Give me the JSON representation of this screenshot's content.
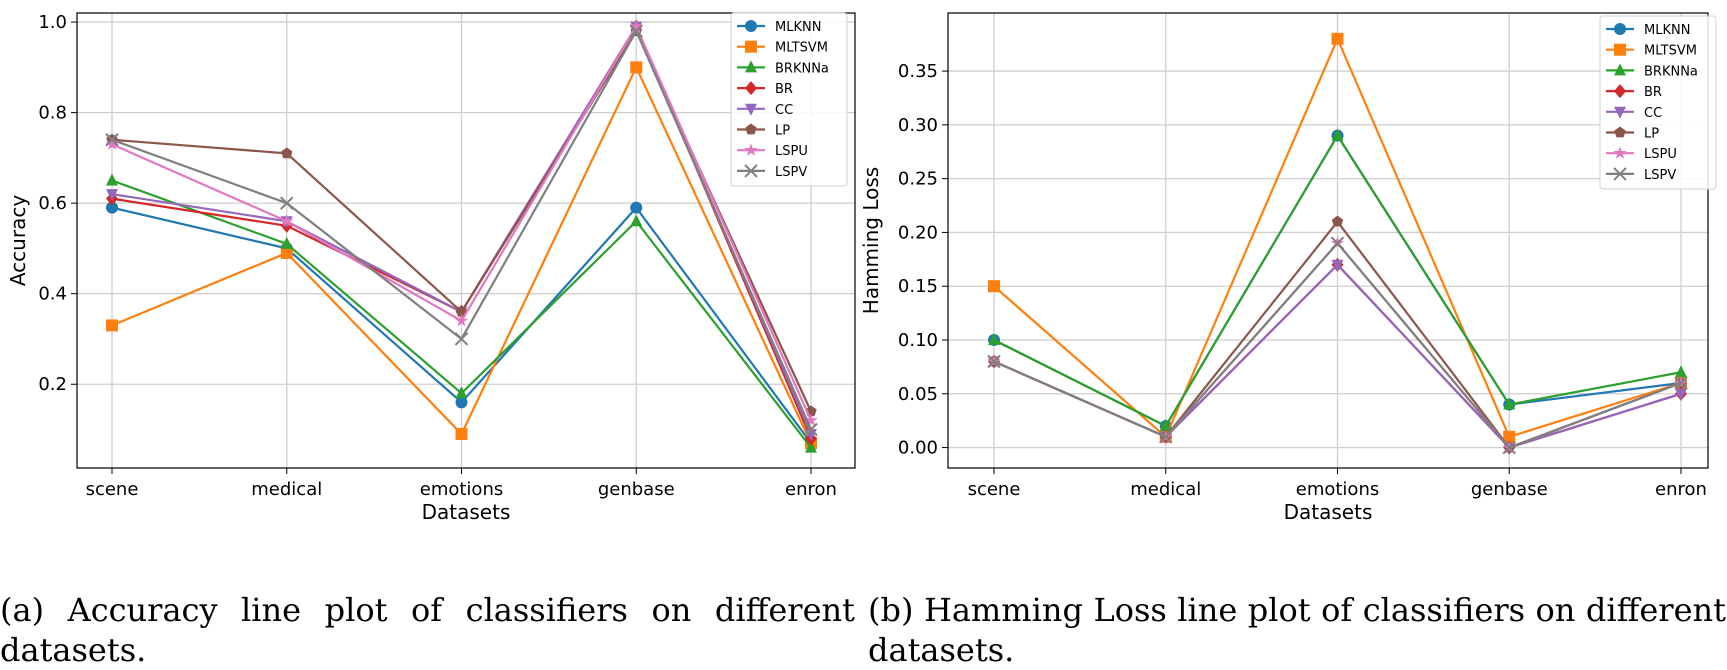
{
  "chart_data": [
    {
      "type": "line",
      "title": "",
      "xlabel": "Datasets",
      "ylabel": "Accuracy",
      "categories": [
        "scene",
        "medical",
        "emotions",
        "genbase",
        "enron"
      ],
      "ylim": [
        0.015,
        1.02
      ],
      "yticks": [
        "0.2",
        "0.4",
        "0.6",
        "0.8",
        "1.0"
      ],
      "grid": true,
      "legend": "top-right",
      "series": [
        {
          "name": "MLKNN",
          "color": "#1f77b4",
          "marker": "circle",
          "values": [
            0.59,
            0.5,
            0.16,
            0.59,
            0.07
          ]
        },
        {
          "name": "MLTSVM",
          "color": "#ff7f0e",
          "marker": "square",
          "values": [
            0.33,
            0.49,
            0.09,
            0.9,
            0.07
          ]
        },
        {
          "name": "BRKNNa",
          "color": "#2ca02c",
          "marker": "triangle-up",
          "values": [
            0.65,
            0.51,
            0.18,
            0.56,
            0.06
          ]
        },
        {
          "name": "BR",
          "color": "#d62728",
          "marker": "diamond",
          "values": [
            0.61,
            0.55,
            0.36,
            0.99,
            0.08
          ]
        },
        {
          "name": "CC",
          "color": "#9467bd",
          "marker": "triangle-down",
          "values": [
            0.62,
            0.56,
            0.36,
            0.99,
            0.09
          ]
        },
        {
          "name": "LP",
          "color": "#8c564b",
          "marker": "pentagon",
          "values": [
            0.74,
            0.71,
            0.36,
            0.98,
            0.14
          ]
        },
        {
          "name": "LSPU",
          "color": "#e377c2",
          "marker": "star",
          "values": [
            0.73,
            0.56,
            0.34,
            0.99,
            0.12
          ]
        },
        {
          "name": "LSPV",
          "color": "#7f7f7f",
          "marker": "x",
          "values": [
            0.74,
            0.6,
            0.3,
            0.98,
            0.1
          ]
        }
      ]
    },
    {
      "type": "line",
      "title": "",
      "xlabel": "Datasets",
      "ylabel": "Hamming Loss",
      "categories": [
        "scene",
        "medical",
        "emotions",
        "genbase",
        "enron"
      ],
      "ylim": [
        -0.019,
        0.404
      ],
      "yticks": [
        "0.00",
        "0.05",
        "0.10",
        "0.15",
        "0.20",
        "0.25",
        "0.30",
        "0.35"
      ],
      "grid": true,
      "legend": "top-right",
      "series": [
        {
          "name": "MLKNN",
          "color": "#1f77b4",
          "marker": "circle",
          "values": [
            0.1,
            0.02,
            0.29,
            0.04,
            0.06
          ]
        },
        {
          "name": "MLTSVM",
          "color": "#ff7f0e",
          "marker": "square",
          "values": [
            0.15,
            0.01,
            0.38,
            0.01,
            0.06
          ]
        },
        {
          "name": "BRKNNa",
          "color": "#2ca02c",
          "marker": "triangle-up",
          "values": [
            0.1,
            0.02,
            0.29,
            0.04,
            0.07
          ]
        },
        {
          "name": "BR",
          "color": "#d62728",
          "marker": "diamond",
          "values": [
            0.08,
            0.01,
            0.17,
            0.0,
            0.05
          ]
        },
        {
          "name": "CC",
          "color": "#9467bd",
          "marker": "triangle-down",
          "values": [
            0.08,
            0.01,
            0.17,
            0.0,
            0.05
          ]
        },
        {
          "name": "LP",
          "color": "#8c564b",
          "marker": "pentagon",
          "values": [
            0.08,
            0.01,
            0.21,
            0.0,
            0.06
          ]
        },
        {
          "name": "LSPU",
          "color": "#e377c2",
          "marker": "star",
          "values": [
            0.08,
            0.01,
            0.19,
            0.0,
            0.06
          ]
        },
        {
          "name": "LSPV",
          "color": "#7f7f7f",
          "marker": "x",
          "values": [
            0.08,
            0.01,
            0.19,
            0.0,
            0.06
          ]
        }
      ]
    }
  ],
  "captions": {
    "a": "(a) Accuracy line plot of classifiers on different datasets.",
    "b": "(b) Hamming Loss line plot of classifiers on different datasets."
  }
}
